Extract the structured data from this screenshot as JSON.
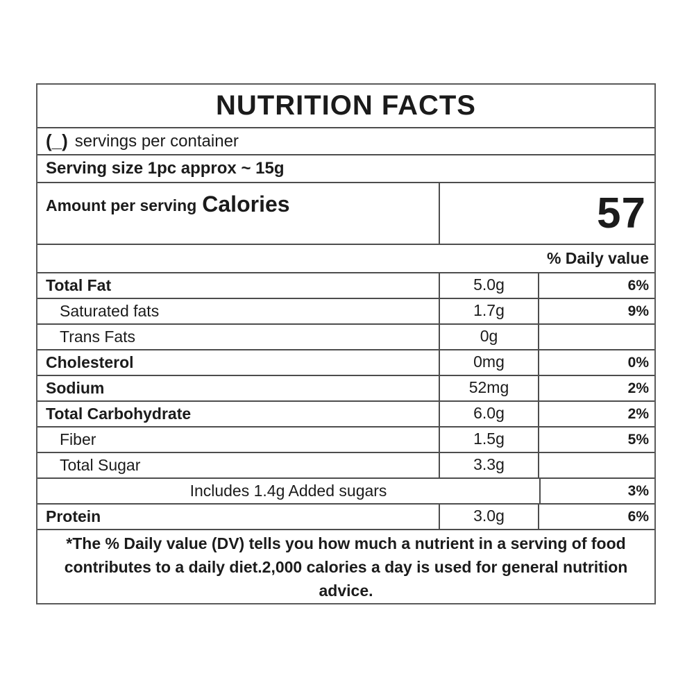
{
  "colors": {
    "text": "#1b1b1b",
    "border": "#4d4d4d",
    "background": "#ffffff"
  },
  "label": {
    "title": "NUTRITION FACTS",
    "servings_prefix": "(_)",
    "servings_text": "servings per container",
    "serving_size": "Serving size 1pc approx ~ 15g",
    "amount_per_serving": "Amount per serving",
    "calories_label": "Calories",
    "calories_value": "57",
    "daily_value_header": "% Daily value",
    "rows": [
      {
        "name": "Total Fat",
        "amount": "5.0g",
        "dv": "6%"
      },
      {
        "name": "Saturated fats",
        "amount": "1.7g",
        "dv": "9%"
      },
      {
        "name": "Trans Fats",
        "amount": "0g",
        "dv": ""
      },
      {
        "name": "Cholesterol",
        "amount": "0mg",
        "dv": "0%"
      },
      {
        "name": "Sodium",
        "amount": "52mg",
        "dv": "2%"
      },
      {
        "name": "Total Carbohydrate",
        "amount": "6.0g",
        "dv": "2%"
      },
      {
        "name": "Fiber",
        "amount": "1.5g",
        "dv": "5%"
      },
      {
        "name": "Total Sugar",
        "amount": "3.3g",
        "dv": ""
      },
      {
        "name": "Includes 1.4g Added sugars",
        "amount": "",
        "dv": "3%"
      },
      {
        "name": "Protein",
        "amount": "3.0g",
        "dv": "6%"
      }
    ],
    "footnote": "*The % Daily value (DV) tells you how much a nutrient in a serving of food contributes to a daily diet.2,000 calories a day is used for general nutrition advice."
  }
}
